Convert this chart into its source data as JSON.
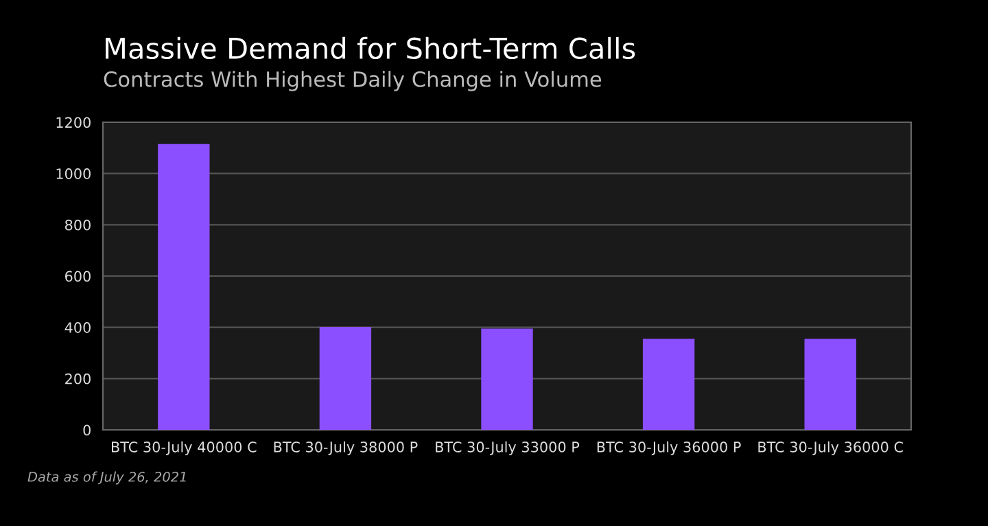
{
  "chart_data": {
    "type": "bar",
    "title": "Massive Demand for Short-Term Calls",
    "subtitle": "Contracts With Highest Daily Change in Volume",
    "categories": [
      "BTC 30-July 40000 C",
      "BTC 30-July 38000 P",
      "BTC 30-July 33000 P",
      "BTC 30-July 36000 P",
      "BTC 30-July 36000 C"
    ],
    "values": [
      1115,
      402,
      395,
      355,
      355
    ],
    "color": "#8c4fff",
    "ylim": [
      0,
      1200
    ],
    "yticks": [
      0,
      200,
      400,
      600,
      800,
      1000,
      1200
    ],
    "grid": "y",
    "annotations": [
      "Data as of July 26, 2021"
    ]
  }
}
